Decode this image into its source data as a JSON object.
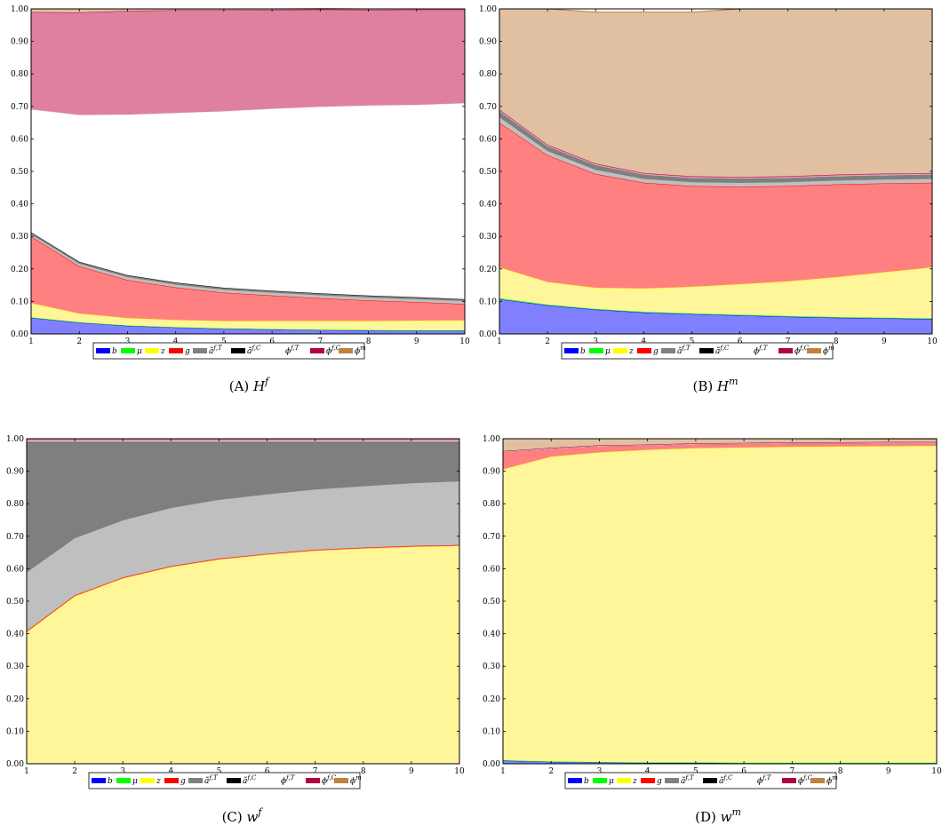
{
  "legend": [
    {
      "label": "b",
      "color": "#0000ff"
    },
    {
      "label": "μ",
      "color": "#00ff00"
    },
    {
      "label": "z",
      "color": "#ffff00"
    },
    {
      "label": "g",
      "color": "#ff0000"
    },
    {
      "label": "ã^{f,T}",
      "color": "#808080"
    },
    {
      "label": "ã^{f,C}",
      "color": "#000000"
    },
    {
      "label": "ϕ^{f,T}",
      "color": "#ffffff"
    },
    {
      "label": "ϕ^{f,C}",
      "color": "#b3003f"
    },
    {
      "label": "ϕ^m",
      "color": "#c08040"
    }
  ],
  "fill_colors": [
    "#8080ff",
    "#80ff80",
    "#fff599",
    "#ff8080",
    "#bfbfbf",
    "#7f7f7f",
    "#ffffff",
    "#e0809f",
    "#e0c0a0"
  ],
  "chart_data": [
    {
      "type": "area",
      "stacked": true,
      "caption_letter": "(A)",
      "caption_var": "H",
      "caption_sup": "f",
      "x": [
        1,
        2,
        3,
        4,
        5,
        6,
        7,
        8,
        9,
        10
      ],
      "xlim": [
        1,
        10
      ],
      "ylim": [
        0,
        1
      ],
      "x_ticks": [
        "1",
        "2",
        "3",
        "4",
        "5",
        "6",
        "7",
        "8",
        "9",
        "10"
      ],
      "y_ticks": [
        "0.00",
        "0.10",
        "0.20",
        "0.30",
        "0.40",
        "0.50",
        "0.60",
        "0.70",
        "0.80",
        "0.90",
        "1.00"
      ],
      "grid": false,
      "series": [
        {
          "name": "b",
          "values": [
            0.05,
            0.035,
            0.025,
            0.02,
            0.016,
            0.014,
            0.012,
            0.011,
            0.01,
            0.01
          ]
        },
        {
          "name": "μ",
          "values": [
            0.001,
            0.001,
            0.001,
            0.001,
            0.001,
            0.001,
            0.001,
            0.001,
            0.001,
            0.001
          ]
        },
        {
          "name": "z",
          "values": [
            0.044,
            0.027,
            0.023,
            0.022,
            0.023,
            0.025,
            0.027,
            0.028,
            0.03,
            0.031
          ]
        },
        {
          "name": "g",
          "values": [
            0.205,
            0.145,
            0.117,
            0.1,
            0.087,
            0.078,
            0.07,
            0.063,
            0.057,
            0.05
          ]
        },
        {
          "name": "ã^{f,T}",
          "values": [
            0.008,
            0.009,
            0.01,
            0.01,
            0.01,
            0.01,
            0.01,
            0.01,
            0.01,
            0.01
          ]
        },
        {
          "name": "ã^{f,C}",
          "values": [
            0.005,
            0.005,
            0.005,
            0.005,
            0.005,
            0.005,
            0.005,
            0.005,
            0.005,
            0.005
          ]
        },
        {
          "name": "ϕ^{f,T}",
          "values": [
            0.378,
            0.452,
            0.494,
            0.522,
            0.543,
            0.56,
            0.574,
            0.585,
            0.592,
            0.603
          ]
        },
        {
          "name": "ϕ^{f,C}",
          "values": [
            0.299,
            0.315,
            0.319,
            0.316,
            0.311,
            0.304,
            0.299,
            0.294,
            0.293,
            0.288
          ]
        },
        {
          "name": "ϕ^m",
          "values": [
            0.01,
            0.011,
            0.006,
            0.004,
            0.004,
            0.003,
            0.003,
            0.003,
            0.002,
            0.002
          ]
        }
      ]
    },
    {
      "type": "area",
      "stacked": true,
      "caption_letter": "(B)",
      "caption_var": "H",
      "caption_sup": "m",
      "x": [
        1,
        2,
        3,
        4,
        5,
        6,
        7,
        8,
        9,
        10
      ],
      "xlim": [
        1,
        10
      ],
      "ylim": [
        0,
        1
      ],
      "x_ticks": [
        "1",
        "2",
        "3",
        "4",
        "5",
        "6",
        "7",
        "8",
        "9",
        "10"
      ],
      "y_ticks": [
        "0.00",
        "0.10",
        "0.20",
        "0.30",
        "0.40",
        "0.50",
        "0.60",
        "0.70",
        "0.80",
        "0.90",
        "1.00"
      ],
      "grid": false,
      "series": [
        {
          "name": "b",
          "values": [
            0.107,
            0.088,
            0.075,
            0.066,
            0.061,
            0.057,
            0.053,
            0.05,
            0.048,
            0.046
          ]
        },
        {
          "name": "μ",
          "values": [
            0.003,
            0.002,
            0.002,
            0.002,
            0.002,
            0.002,
            0.002,
            0.002,
            0.002,
            0.002
          ]
        },
        {
          "name": "z",
          "values": [
            0.095,
            0.07,
            0.065,
            0.072,
            0.082,
            0.094,
            0.107,
            0.123,
            0.14,
            0.157
          ]
        },
        {
          "name": "g",
          "values": [
            0.445,
            0.39,
            0.35,
            0.325,
            0.31,
            0.3,
            0.293,
            0.285,
            0.273,
            0.26
          ]
        },
        {
          "name": "ã^{f,T}",
          "values": [
            0.018,
            0.014,
            0.014,
            0.013,
            0.013,
            0.013,
            0.013,
            0.013,
            0.013,
            0.013
          ]
        },
        {
          "name": "ã^{f,C}",
          "values": [
            0.018,
            0.014,
            0.014,
            0.013,
            0.013,
            0.013,
            0.013,
            0.013,
            0.013,
            0.013
          ]
        },
        {
          "name": "ϕ^{f,T}",
          "values": [
            0,
            0,
            0,
            0,
            0,
            0,
            0,
            0,
            0,
            0
          ]
        },
        {
          "name": "ϕ^{f,C}",
          "values": [
            0.004,
            0.004,
            0.004,
            0.004,
            0.004,
            0.004,
            0.004,
            0.004,
            0.004,
            0.004
          ]
        },
        {
          "name": "ϕ^m",
          "values": [
            0.31,
            0.418,
            0.466,
            0.495,
            0.505,
            0.517,
            0.515,
            0.51,
            0.507,
            0.505
          ]
        }
      ]
    },
    {
      "type": "area",
      "stacked": true,
      "caption_letter": "(C)",
      "caption_var": "w",
      "caption_sup": "f",
      "x": [
        1,
        2,
        3,
        4,
        5,
        6,
        7,
        8,
        9,
        10
      ],
      "xlim": [
        1,
        10
      ],
      "ylim": [
        0,
        1
      ],
      "x_ticks": [
        "1",
        "2",
        "3",
        "4",
        "5",
        "6",
        "7",
        "8",
        "9",
        "10"
      ],
      "y_ticks": [
        "0.00",
        "0.10",
        "0.20",
        "0.30",
        "0.40",
        "0.50",
        "0.60",
        "0.70",
        "0.80",
        "0.90",
        "1.00"
      ],
      "grid": false,
      "series": [
        {
          "name": "b",
          "values": [
            0,
            0,
            0,
            0,
            0,
            0,
            0,
            0,
            0,
            0
          ]
        },
        {
          "name": "μ",
          "values": [
            0,
            0,
            0,
            0,
            0,
            0,
            0,
            0,
            0,
            0
          ]
        },
        {
          "name": "z",
          "values": [
            0.405,
            0.515,
            0.57,
            0.605,
            0.628,
            0.643,
            0.655,
            0.662,
            0.667,
            0.67
          ]
        },
        {
          "name": "g",
          "values": [
            0.003,
            0.003,
            0.003,
            0.003,
            0.003,
            0.003,
            0.003,
            0.003,
            0.003,
            0.003
          ]
        },
        {
          "name": "ã^{f,T}",
          "values": [
            0.182,
            0.177,
            0.177,
            0.18,
            0.182,
            0.184,
            0.187,
            0.19,
            0.194,
            0.197
          ]
        },
        {
          "name": "ã^{f,C}",
          "values": [
            0.4,
            0.295,
            0.24,
            0.202,
            0.177,
            0.16,
            0.145,
            0.135,
            0.126,
            0.12
          ]
        },
        {
          "name": "ϕ^{f,T}",
          "values": [
            0.003,
            0.003,
            0.003,
            0.003,
            0.003,
            0.003,
            0.003,
            0.003,
            0.003,
            0.003
          ]
        },
        {
          "name": "ϕ^{f,C}",
          "values": [
            0.007,
            0.007,
            0.007,
            0.007,
            0.007,
            0.007,
            0.007,
            0.007,
            0.007,
            0.007
          ]
        },
        {
          "name": "ϕ^m",
          "values": [
            0,
            0,
            0,
            0,
            0,
            0,
            0,
            0,
            0,
            0
          ]
        }
      ]
    },
    {
      "type": "area",
      "stacked": true,
      "caption_letter": "(D)",
      "caption_var": "w",
      "caption_sup": "m",
      "x": [
        1,
        2,
        3,
        4,
        5,
        6,
        7,
        8,
        9,
        10
      ],
      "xlim": [
        1,
        10
      ],
      "ylim": [
        0,
        1
      ],
      "x_ticks": [
        "1",
        "2",
        "3",
        "4",
        "5",
        "6",
        "7",
        "8",
        "9",
        "10"
      ],
      "y_ticks": [
        "0.00",
        "0.10",
        "0.20",
        "0.30",
        "0.40",
        "0.50",
        "0.60",
        "0.70",
        "0.80",
        "0.90",
        "1.00"
      ],
      "grid": false,
      "series": [
        {
          "name": "b",
          "values": [
            0.01,
            0.006,
            0.004,
            0.003,
            0.003,
            0.002,
            0.002,
            0.002,
            0.002,
            0.002
          ]
        },
        {
          "name": "μ",
          "values": [
            0.001,
            0.001,
            0.001,
            0.001,
            0.001,
            0.001,
            0.001,
            0.001,
            0.001,
            0.001
          ]
        },
        {
          "name": "z",
          "values": [
            0.895,
            0.938,
            0.953,
            0.962,
            0.967,
            0.97,
            0.972,
            0.973,
            0.974,
            0.975
          ]
        },
        {
          "name": "g",
          "values": [
            0.054,
            0.025,
            0.02,
            0.014,
            0.013,
            0.012,
            0.012,
            0.011,
            0.011,
            0.01
          ]
        },
        {
          "name": "ã^{f,T}",
          "values": [
            0,
            0,
            0,
            0,
            0,
            0,
            0,
            0,
            0,
            0
          ]
        },
        {
          "name": "ã^{f,C}",
          "values": [
            0,
            0,
            0,
            0,
            0,
            0,
            0,
            0,
            0,
            0
          ]
        },
        {
          "name": "ϕ^{f,T}",
          "values": [
            0,
            0,
            0,
            0,
            0,
            0,
            0,
            0,
            0,
            0
          ]
        },
        {
          "name": "ϕ^{f,C}",
          "values": [
            0.002,
            0.002,
            0.002,
            0.002,
            0.002,
            0.002,
            0.002,
            0.002,
            0.002,
            0.002
          ]
        },
        {
          "name": "ϕ^m",
          "values": [
            0.038,
            0.028,
            0.02,
            0.018,
            0.014,
            0.013,
            0.011,
            0.01,
            0.009,
            0.009
          ]
        }
      ]
    }
  ]
}
